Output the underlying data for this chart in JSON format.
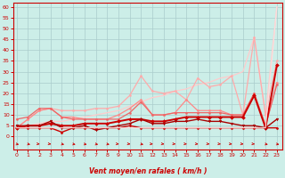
{
  "title": "",
  "xlabel": "Vent moyen/en rafales ( km/h )",
  "ylabel": "",
  "bg_color": "#cceee8",
  "grid_color": "#aacccc",
  "axis_color": "#cc0000",
  "x_ticks": [
    0,
    1,
    2,
    3,
    4,
    5,
    6,
    7,
    8,
    9,
    10,
    11,
    12,
    13,
    14,
    15,
    16,
    17,
    18,
    19,
    20,
    21,
    22,
    23
  ],
  "y_ticks": [
    0,
    5,
    10,
    15,
    20,
    25,
    30,
    35,
    40,
    45,
    50,
    55,
    60
  ],
  "ylim": [
    -6,
    62
  ],
  "xlim": [
    -0.3,
    23.5
  ],
  "lines": [
    {
      "x": [
        0,
        1,
        2,
        3,
        4,
        5,
        6,
        7,
        8,
        9,
        10,
        11,
        12,
        13,
        14,
        15,
        16,
        17,
        18,
        19,
        20,
        21,
        22,
        23
      ],
      "y": [
        4,
        5,
        6,
        7,
        7,
        8,
        9,
        10,
        11,
        12,
        14,
        16,
        18,
        19,
        21,
        22,
        24,
        25,
        27,
        28,
        30,
        46,
        10,
        60
      ],
      "color": "#ffcccc",
      "lw": 0.9,
      "marker": null,
      "ms": 2
    },
    {
      "x": [
        0,
        1,
        2,
        3,
        4,
        5,
        6,
        7,
        8,
        9,
        10,
        11,
        12,
        13,
        14,
        15,
        16,
        17,
        18,
        19,
        20,
        21,
        22,
        23
      ],
      "y": [
        4,
        8,
        12,
        13,
        12,
        12,
        12,
        13,
        13,
        14,
        19,
        28,
        21,
        20,
        21,
        17,
        27,
        23,
        24,
        28,
        10,
        46,
        10,
        35
      ],
      "color": "#ffaaaa",
      "lw": 0.9,
      "marker": "o",
      "ms": 1.5
    },
    {
      "x": [
        0,
        1,
        2,
        3,
        4,
        5,
        6,
        7,
        8,
        9,
        10,
        11,
        12,
        13,
        14,
        15,
        16,
        17,
        18,
        19,
        20,
        21,
        22,
        23
      ],
      "y": [
        4,
        8,
        12,
        13,
        9,
        9,
        8,
        8,
        8,
        10,
        13,
        17,
        10,
        10,
        11,
        17,
        12,
        12,
        12,
        10,
        10,
        20,
        5,
        25
      ],
      "color": "#ff8888",
      "lw": 0.9,
      "marker": "o",
      "ms": 1.5
    },
    {
      "x": [
        0,
        1,
        2,
        3,
        4,
        5,
        6,
        7,
        8,
        9,
        10,
        11,
        12,
        13,
        14,
        15,
        16,
        17,
        18,
        19,
        20,
        21,
        22,
        23
      ],
      "y": [
        8,
        9,
        13,
        13,
        9,
        8,
        8,
        8,
        8,
        8,
        11,
        16,
        10,
        10,
        11,
        11,
        11,
        11,
        11,
        10,
        10,
        20,
        5,
        24
      ],
      "color": "#ee6666",
      "lw": 0.9,
      "marker": "o",
      "ms": 1.5
    },
    {
      "x": [
        0,
        1,
        2,
        3,
        4,
        5,
        6,
        7,
        8,
        9,
        10,
        11,
        12,
        13,
        14,
        15,
        16,
        17,
        18,
        19,
        20,
        21,
        22,
        23
      ],
      "y": [
        4,
        5,
        5,
        6,
        5,
        5,
        6,
        6,
        6,
        7,
        8,
        8,
        7,
        7,
        8,
        9,
        9,
        9,
        9,
        9,
        9,
        19,
        4,
        33
      ],
      "color": "#cc0000",
      "lw": 1.4,
      "marker": "D",
      "ms": 2
    },
    {
      "x": [
        0,
        1,
        2,
        3,
        4,
        5,
        6,
        7,
        8,
        9,
        10,
        11,
        12,
        13,
        14,
        15,
        16,
        17,
        18,
        19,
        20,
        21,
        22,
        23
      ],
      "y": [
        4,
        4,
        4,
        4,
        2,
        4,
        4,
        4,
        4,
        4,
        5,
        4,
        4,
        4,
        4,
        4,
        4,
        4,
        4,
        4,
        4,
        4,
        4,
        4
      ],
      "color": "#cc0000",
      "lw": 1.0,
      "marker": "D",
      "ms": 1.5
    },
    {
      "x": [
        0,
        1,
        2,
        3,
        4,
        5,
        6,
        7,
        8,
        9,
        10,
        11,
        12,
        13,
        14,
        15,
        16,
        17,
        18,
        19,
        20,
        21,
        22,
        23
      ],
      "y": [
        5,
        5,
        5,
        7,
        4,
        4,
        5,
        3,
        4,
        5,
        6,
        8,
        6,
        6,
        7,
        7,
        8,
        7,
        7,
        6,
        5,
        5,
        4,
        8
      ],
      "color": "#aa0000",
      "lw": 1.0,
      "marker": "v",
      "ms": 2
    },
    {
      "x": [
        0,
        22,
        23
      ],
      "y": [
        4,
        4,
        60
      ],
      "color": "#ffdddd",
      "lw": 0.8,
      "marker": null,
      "ms": 0
    }
  ],
  "arrow_color": "#cc0000",
  "arrow_angles": [
    -45,
    -45,
    -30,
    -30,
    -45,
    -45,
    -45,
    -45,
    -45,
    -30,
    -30,
    -45,
    -30,
    -30,
    -30,
    -30,
    -30,
    -30,
    -30,
    -30,
    -30,
    -30,
    -45,
    -45
  ]
}
